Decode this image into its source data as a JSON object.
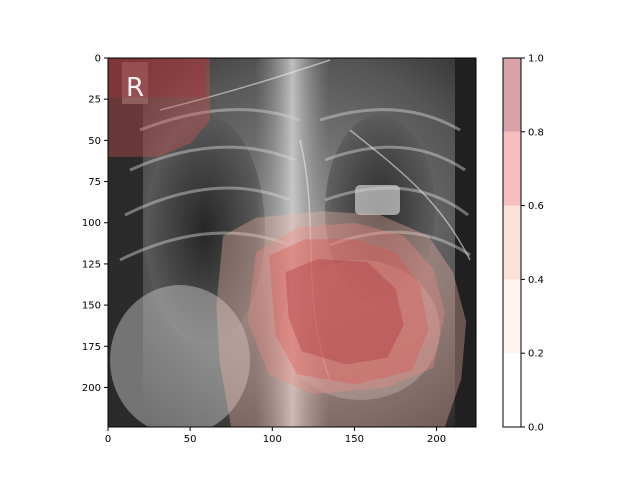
{
  "chart_data": {
    "type": "heatmap",
    "title": "",
    "xlabel": "",
    "ylabel": "",
    "xlim": [
      0,
      224
    ],
    "ylim": [
      224,
      0
    ],
    "xticks": [
      0,
      50,
      100,
      150,
      200
    ],
    "yticks": [
      0,
      25,
      50,
      75,
      100,
      125,
      150,
      175,
      200
    ],
    "image_annotations": [
      "R"
    ],
    "overlay_colormap": "Reds",
    "overlay_alpha": 0.35,
    "colorbar": {
      "range": [
        0,
        1
      ],
      "ticks": [
        "0.0",
        "0.2",
        "0.4",
        "0.6",
        "0.8",
        "1.0"
      ],
      "levels": [
        {
          "from": 0.0,
          "to": 0.2,
          "color": "#ffffff"
        },
        {
          "from": 0.2,
          "to": 0.4,
          "color": "#fef3ef"
        },
        {
          "from": 0.4,
          "to": 0.6,
          "color": "#fde0d6"
        },
        {
          "from": 0.6,
          "to": 0.8,
          "color": "#f6bfbd"
        },
        {
          "from": 0.8,
          "to": 1.0,
          "color": "#d8a3a8"
        }
      ]
    },
    "heat_regions": [
      {
        "level": 0.3,
        "points": [
          [
            70,
            108
          ],
          [
            90,
            97
          ],
          [
            130,
            93
          ],
          [
            165,
            95
          ],
          [
            195,
            108
          ],
          [
            210,
            130
          ],
          [
            218,
            160
          ],
          [
            215,
            195
          ],
          [
            205,
            224
          ],
          [
            75,
            224
          ],
          [
            68,
            185
          ],
          [
            66,
            150
          ]
        ]
      },
      {
        "level": 0.5,
        "points": [
          [
            90,
            118
          ],
          [
            115,
            103
          ],
          [
            150,
            100
          ],
          [
            180,
            108
          ],
          [
            198,
            128
          ],
          [
            205,
            155
          ],
          [
            198,
            188
          ],
          [
            170,
            200
          ],
          [
            125,
            204
          ],
          [
            98,
            192
          ],
          [
            85,
            160
          ]
        ]
      },
      {
        "level": 0.7,
        "points": [
          [
            98,
            120
          ],
          [
            120,
            110
          ],
          [
            150,
            110
          ],
          [
            175,
            118
          ],
          [
            190,
            138
          ],
          [
            195,
            165
          ],
          [
            185,
            190
          ],
          [
            150,
            198
          ],
          [
            115,
            192
          ],
          [
            102,
            168
          ]
        ]
      },
      {
        "level": 0.9,
        "points": [
          [
            108,
            130
          ],
          [
            128,
            122
          ],
          [
            158,
            124
          ],
          [
            175,
            140
          ],
          [
            180,
            162
          ],
          [
            170,
            182
          ],
          [
            145,
            186
          ],
          [
            118,
            178
          ],
          [
            110,
            158
          ]
        ]
      },
      {
        "level": 0.6,
        "points": [
          [
            0,
            0
          ],
          [
            62,
            0
          ],
          [
            62,
            38
          ],
          [
            50,
            52
          ],
          [
            30,
            60
          ],
          [
            0,
            60
          ]
        ]
      },
      {
        "level": 0.9,
        "points": [
          [
            0,
            0
          ],
          [
            60,
            0
          ],
          [
            60,
            24
          ],
          [
            0,
            24
          ]
        ]
      }
    ]
  }
}
